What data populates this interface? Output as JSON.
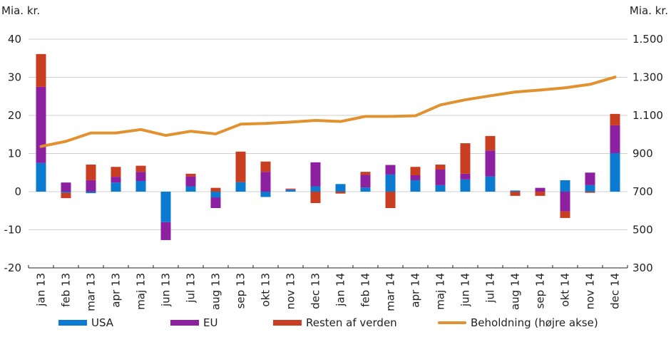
{
  "chart_data": {
    "type": "bar",
    "subtype": "stacked bar with line on secondary axis",
    "title": "",
    "ylabel": "Mia. kr.",
    "ylabel_right": "Mia. kr.",
    "ylim": [
      -20,
      40
    ],
    "yticks": [
      -20,
      -10,
      0,
      10,
      20,
      30,
      40
    ],
    "ytick_labels": [
      "-20",
      "-10",
      "0",
      "10",
      "20",
      "30",
      "40"
    ],
    "ylim_right": [
      300,
      1500
    ],
    "yticks_right": [
      300,
      500,
      700,
      900,
      1100,
      1300,
      1500
    ],
    "ytick_labels_right": [
      "300",
      "500",
      "700",
      "900",
      "1.100",
      "1.300",
      "1.500"
    ],
    "grid": true,
    "legend_position": "bottom",
    "categories": [
      "jan 13",
      "feb 13",
      "mar 13",
      "apr 13",
      "maj 13",
      "jun 13",
      "jul 13",
      "aug 13",
      "sep 13",
      "okt 13",
      "nov 13",
      "dec 13",
      "jan 14",
      "feb 14",
      "mar 14",
      "apr 14",
      "maj 14",
      "jun 14",
      "jul 14",
      "aug 14",
      "sep 14",
      "okt 14",
      "nov 14",
      "dec 14"
    ],
    "series": [
      {
        "name": "USA",
        "type": "bar",
        "axis": "left",
        "color": "#0b7ad1",
        "values": [
          7.5,
          -0.3,
          -0.4,
          2.4,
          2.8,
          -8.0,
          1.4,
          -1.5,
          2.5,
          -1.4,
          0.5,
          1.4,
          2.0,
          1.1,
          4.5,
          3.0,
          1.7,
          3.2,
          4.0,
          0.3,
          0.0,
          3.0,
          1.7,
          10.1
        ]
      },
      {
        "name": "EU",
        "type": "bar",
        "axis": "left",
        "color": "#8c20a0",
        "values": [
          20.0,
          2.4,
          3.0,
          1.5,
          2.4,
          -4.7,
          2.6,
          -2.8,
          0.0,
          5.2,
          0.1,
          6.3,
          0.0,
          3.3,
          2.5,
          1.3,
          4.1,
          1.5,
          6.8,
          0.0,
          1.0,
          -5.2,
          3.3,
          7.3
        ]
      },
      {
        "name": "Resten af verden",
        "type": "bar",
        "axis": "left",
        "color": "#c93e20",
        "values": [
          8.6,
          -1.4,
          4.1,
          2.6,
          1.6,
          0.0,
          0.7,
          1.0,
          8.0,
          2.7,
          0.2,
          -3.0,
          -0.5,
          0.8,
          -4.3,
          2.2,
          1.3,
          8.0,
          3.8,
          -1.1,
          -1.1,
          -1.7,
          -0.3,
          3.0
        ]
      },
      {
        "name": "Beholdning (højre akse)",
        "type": "line",
        "axis": "right",
        "color": "#e1912f",
        "values": [
          937,
          964,
          1008,
          1008,
          1026,
          995,
          1017,
          1003,
          1054,
          1058,
          1065,
          1074,
          1068,
          1095,
          1095,
          1098,
          1155,
          1182,
          1203,
          1223,
          1233,
          1245,
          1263,
          1301
        ]
      }
    ]
  }
}
